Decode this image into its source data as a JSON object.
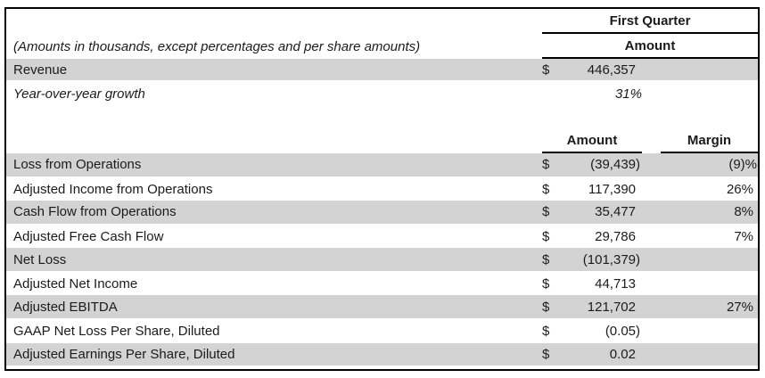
{
  "table": {
    "note": "(Amounts in thousands, except percentages and per share amounts)",
    "header": {
      "group": "First Quarter",
      "amount": "Amount"
    },
    "section2": {
      "amount": "Amount",
      "margin": "Margin"
    },
    "top_rows": [
      {
        "label": "Revenue",
        "currency": "$",
        "amount": "446,357"
      },
      {
        "label": "Year-over-year growth",
        "currency": "",
        "amount": "31%"
      }
    ],
    "rows": [
      {
        "label": "Loss from Operations",
        "currency": "$",
        "amount": "(39,439)",
        "margin": "(9)%"
      },
      {
        "label": "Adjusted Income from Operations",
        "currency": "$",
        "amount": "117,390",
        "margin": "26%"
      },
      {
        "label": "Cash Flow from Operations",
        "currency": "$",
        "amount": "35,477",
        "margin": "8%"
      },
      {
        "label": "Adjusted Free Cash Flow",
        "currency": "$",
        "amount": "29,786",
        "margin": "7%"
      },
      {
        "label": "Net Loss",
        "currency": "$",
        "amount": "(101,379)",
        "margin": ""
      },
      {
        "label": "Adjusted Net Income",
        "currency": "$",
        "amount": "44,713",
        "margin": ""
      },
      {
        "label": "Adjusted EBITDA",
        "currency": "$",
        "amount": "121,702",
        "margin": "27%"
      },
      {
        "label": "GAAP Net Loss Per Share, Diluted",
        "currency": "$",
        "amount": "(0.05)",
        "margin": ""
      },
      {
        "label": "Adjusted Earnings Per Share, Diluted",
        "currency": "$",
        "amount": "0.02",
        "margin": ""
      }
    ],
    "colors": {
      "shaded_row": "#d3d3d3",
      "border": "#000000",
      "text": "#1b1b1b"
    }
  }
}
